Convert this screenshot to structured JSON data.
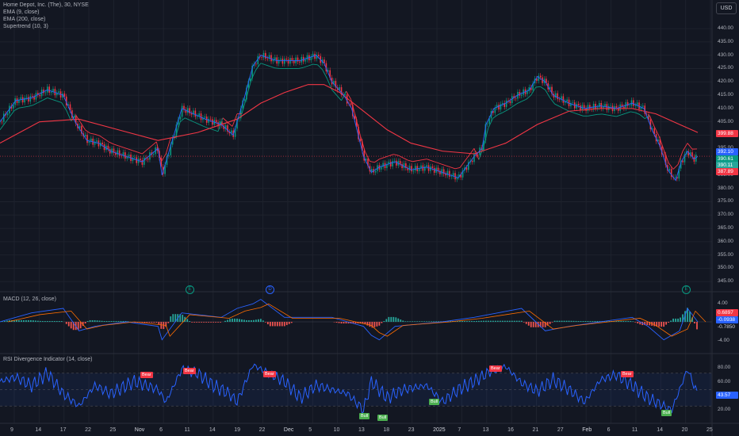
{
  "header": {
    "symbol_line": "Home Depot, Inc. (The), 30, NYSE",
    "indicators": [
      "EMA (9, close)",
      "EMA (200, close)",
      "Supertrend (10, 3)"
    ],
    "currency": "USD"
  },
  "price_tags": {
    "ema200": "399.88",
    "current": "392.10",
    "ema9": "390.61",
    "st_up": "390.11",
    "low": "387.89"
  },
  "macd": {
    "label": "MACD (12, 26, close)",
    "ticks": [
      "4.00",
      "0.00",
      "-4.00"
    ],
    "tags": {
      "a": "0.6897",
      "b": "-0.0938",
      "c": "-0.7850"
    }
  },
  "rsi": {
    "label": "RSI Divergence Indicator (14, close)",
    "ticks": [
      "80.00",
      "60.00",
      "40.00",
      "20.00"
    ],
    "current": "43.57",
    "signals": [
      {
        "text": "Bear",
        "type": "bear"
      },
      {
        "text": "Bear",
        "type": "bear"
      },
      {
        "text": "Bear",
        "type": "bear"
      },
      {
        "text": "Bear",
        "type": "bear"
      },
      {
        "text": "Bear",
        "type": "bear"
      },
      {
        "text": "Bull",
        "type": "bull"
      },
      {
        "text": "Bull",
        "type": "bull"
      },
      {
        "text": "Bull",
        "type": "bull"
      },
      {
        "text": "Bull",
        "type": "bull"
      }
    ]
  },
  "events": [
    "E",
    "D",
    "E"
  ],
  "colors": {
    "background": "#131722",
    "ema200": "#f23645",
    "ema9": "#2962ff",
    "supertrend_up": "#089981",
    "supertrend_down": "#f23645",
    "rsi": "#2962ff",
    "macd_line": "#2962ff",
    "signal_line": "#ff6d00"
  },
  "chart_data": {
    "type": "line",
    "title": "Home Depot, Inc. (The), 30, NYSE",
    "y_ticks": [
      "440.00",
      "435.00",
      "430.00",
      "425.00",
      "420.00",
      "415.00",
      "410.00",
      "405.00",
      "400.00",
      "395.00",
      "390.00",
      "385.00",
      "380.00",
      "375.00",
      "370.00",
      "365.00",
      "360.00",
      "355.00",
      "350.00",
      "345.00"
    ],
    "ylim": [
      343,
      443
    ],
    "x_ticks": [
      "9",
      "14",
      "17",
      "22",
      "25",
      "Nov",
      "6",
      "11",
      "14",
      "19",
      "22",
      "Dec",
      "5",
      "10",
      "13",
      "18",
      "23",
      "2025",
      "7",
      "13",
      "16",
      "21",
      "27",
      "Feb",
      "6",
      "11",
      "14",
      "20",
      "25"
    ],
    "series": [
      {
        "name": "Close",
        "x": [
          0,
          20,
          40,
          60,
          80,
          95,
          110,
          125,
          140,
          160,
          180,
          200,
          205,
          215,
          230,
          245,
          260,
          280,
          295,
          310,
          320,
          330,
          350,
          380,
          400,
          410,
          420,
          435,
          445,
          460,
          470,
          480,
          500,
          520,
          540,
          560,
          580,
          600,
          610,
          615,
          625,
          640,
          655,
          670,
          680,
          690,
          700,
          720,
          740,
          760,
          780,
          800,
          815,
          825,
          835,
          845,
          855,
          862,
          870,
          878,
          883
        ],
        "values": [
          405,
          413,
          414,
          417,
          415,
          405,
          398,
          397,
          394,
          392,
          390,
          395,
          385,
          395,
          410,
          408,
          406,
          404,
          400,
          415,
          426,
          430,
          428,
          428,
          430,
          427,
          420,
          415,
          410,
          392,
          386,
          388,
          390,
          387,
          388,
          386,
          384,
          392,
          395,
          404,
          410,
          412,
          415,
          417,
          422,
          420,
          415,
          412,
          410,
          411,
          410,
          412,
          410,
          402,
          396,
          387,
          383,
          390,
          394,
          391,
          392
        ]
      },
      {
        "name": "EMA (200, close)",
        "x": [
          0,
          50,
          100,
          150,
          200,
          250,
          300,
          330,
          360,
          390,
          410,
          430,
          460,
          490,
          520,
          560,
          600,
          640,
          680,
          720,
          760,
          800,
          830,
          860,
          883
        ],
        "values": [
          397,
          405,
          406,
          402,
          398,
          401,
          406,
          412,
          416,
          419,
          419,
          416,
          409,
          402,
          397,
          394,
          393,
          397,
          404,
          409,
          410,
          410,
          408,
          404,
          401
        ]
      },
      {
        "name": "MACD",
        "x": [
          0,
          40,
          80,
          100,
          120,
          160,
          200,
          205,
          230,
          280,
          300,
          320,
          330,
          360,
          420,
          440,
          460,
          470,
          480,
          500,
          560,
          600,
          630,
          660,
          690,
          720,
          760,
          800,
          820,
          840,
          860,
          870,
          883
        ],
        "values": [
          0,
          2,
          3,
          -2,
          -1,
          0,
          -1,
          -4,
          2,
          1,
          3,
          4,
          5,
          1,
          1,
          0,
          -1,
          -3,
          -4,
          -1,
          0,
          1,
          2,
          3,
          -2,
          -1,
          0,
          1,
          -1,
          -4,
          -2,
          3,
          0
        ]
      },
      {
        "name": "RSI",
        "x": [
          0,
          20,
          40,
          60,
          80,
          100,
          120,
          140,
          170,
          200,
          210,
          230,
          250,
          270,
          290,
          300,
          320,
          340,
          360,
          380,
          400,
          420,
          440,
          460,
          470,
          490,
          510,
          540,
          560,
          580,
          600,
          620,
          640,
          660,
          680,
          700,
          720,
          740,
          760,
          780,
          800,
          820,
          840,
          850,
          860,
          870,
          883
        ],
        "values": [
          60,
          65,
          55,
          70,
          45,
          30,
          55,
          45,
          60,
          50,
          35,
          75,
          70,
          55,
          45,
          35,
          80,
          70,
          60,
          40,
          55,
          50,
          45,
          25,
          60,
          40,
          50,
          55,
          35,
          50,
          60,
          72,
          78,
          58,
          48,
          62,
          50,
          35,
          62,
          68,
          55,
          40,
          30,
          25,
          50,
          75,
          43.57
        ]
      }
    ]
  }
}
